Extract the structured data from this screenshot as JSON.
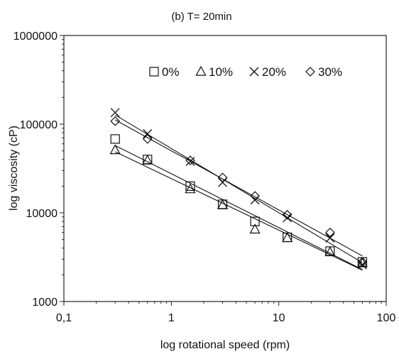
{
  "chart_data": {
    "type": "scatter",
    "title": "(b) T= 20min",
    "xlabel": "log rotational speed (rpm)",
    "ylabel": "log viscosity (cP)",
    "xscale": "log",
    "yscale": "log",
    "xlim": [
      0.1,
      100
    ],
    "ylim": [
      1000,
      1000000
    ],
    "x_tick_labels": [
      "0,1",
      "1",
      "10",
      "100"
    ],
    "y_tick_labels": [
      "1000",
      "10000",
      "100000",
      "1000000"
    ],
    "grid": false,
    "legend_position": "top",
    "x": [
      0.3,
      0.6,
      1.5,
      3,
      6,
      12,
      30,
      60
    ],
    "series": [
      {
        "name": "0%",
        "marker": "square",
        "values": [
          68000,
          40000,
          20000,
          12500,
          8000,
          5300,
          3700,
          2800
        ]
      },
      {
        "name": "10%",
        "marker": "triangle",
        "values": [
          51000,
          39000,
          18500,
          12200,
          6500,
          5200,
          3600,
          2700
        ]
      },
      {
        "name": "20%",
        "marker": "x",
        "values": [
          135000,
          78000,
          38000,
          22000,
          14000,
          8800,
          5200,
          2600
        ]
      },
      {
        "name": "30%",
        "marker": "diamond",
        "values": [
          108000,
          68000,
          39000,
          25000,
          15500,
          9500,
          6000,
          2800
        ]
      }
    ]
  }
}
